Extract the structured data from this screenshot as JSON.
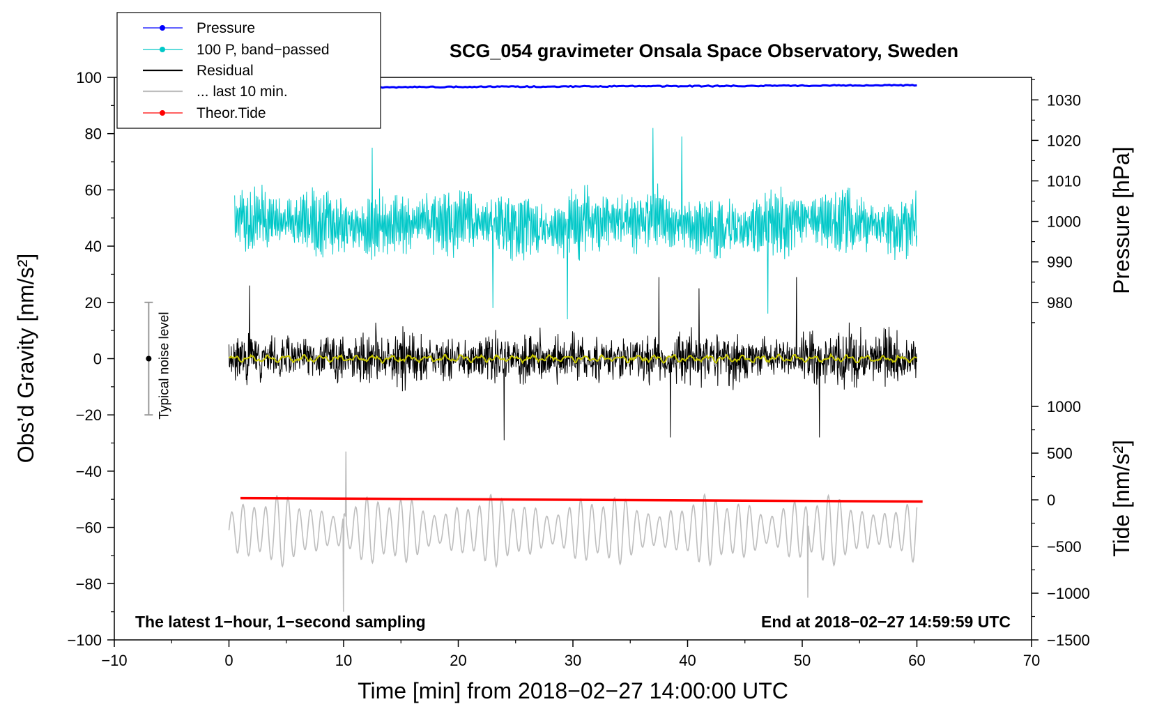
{
  "chart_data": {
    "type": "line",
    "title": "SCG_054 gravimeter Onsala Space Observatory, Sweden",
    "xlabel": "Time [min] from 2018−02−27 14:00:00 UTC",
    "ylabel_left": "Obs’d Gravity [nm/s²]",
    "ylabel_right_top": "Pressure [hPa]",
    "ylabel_right_bottom": "Tide [nm/s²]",
    "xlim": [
      -10,
      70
    ],
    "ylim": [
      -100,
      100
    ],
    "xticks": [
      -10,
      0,
      10,
      20,
      30,
      40,
      50,
      60,
      70
    ],
    "xtick_labels": [
      "−10",
      "0",
      "10",
      "20",
      "30",
      "40",
      "50",
      "60",
      "70"
    ],
    "yticks": [
      -100,
      -80,
      -60,
      -40,
      -20,
      0,
      20,
      40,
      60,
      80,
      100
    ],
    "ytick_labels": [
      "−100",
      "−80",
      "−60",
      "−40",
      "−20",
      "0",
      "20",
      "40",
      "60",
      "80",
      "100"
    ],
    "pressure_axis": {
      "ticks": [
        980,
        990,
        1000,
        1010,
        1020,
        1030
      ],
      "labels": [
        "980",
        "990",
        "1000",
        "1010",
        "1020",
        "1030"
      ],
      "left_value_at": {
        "p980": 20,
        "p1030": 92
      }
    },
    "tide_axis": {
      "ticks": [
        -1500,
        -1000,
        -500,
        0,
        500,
        1000
      ],
      "labels": [
        "−1500",
        "−1000",
        "−500",
        "0",
        "500",
        "1000"
      ],
      "left_value_at": {
        "t_minus1500": -100,
        "t1000": -17
      }
    },
    "legend": {
      "placement": "top-left",
      "entries": [
        {
          "label": "Pressure",
          "color": "#0000ff",
          "marker": true
        },
        {
          "label": "100 P, band−passed",
          "color": "#00c8c8",
          "marker": true
        },
        {
          "label": "Residual",
          "color": "#000000",
          "marker": false
        },
        {
          "label": "... last 10 min.",
          "color": "#bebebe",
          "marker": false
        },
        {
          "label": "Theor.Tide",
          "color": "#ff0000",
          "marker": true
        }
      ]
    },
    "noise_bar": {
      "x": -7,
      "center": 0,
      "low": -20,
      "high": 20,
      "label": "Typical noise level"
    },
    "annotations": {
      "bottom_left": "The latest 1−hour, 1−second sampling",
      "bottom_right": "End at 2018−02−27 14:59:59 UTC"
    },
    "series": [
      {
        "name": "Pressure",
        "color": "#0000ff",
        "x_range": [
          0,
          60
        ],
        "start_left": 96.3,
        "end_left": 97.2,
        "description": "nearly flat, about 1031 hPa"
      },
      {
        "name": "100 P, band−passed",
        "color": "#00c8c8",
        "x_range": [
          0.5,
          60
        ],
        "center_left": 48,
        "amplitude_left": 12,
        "spikes": [
          [
            12.5,
            75
          ],
          [
            37,
            82
          ],
          [
            39.5,
            79
          ],
          [
            23,
            18
          ],
          [
            29.5,
            14
          ],
          [
            47,
            16
          ]
        ]
      },
      {
        "name": "Residual",
        "color": "#000000",
        "x_range": [
          0,
          60
        ],
        "center_left": 0,
        "amplitude_left": 10,
        "spikes": [
          [
            1.8,
            26
          ],
          [
            24,
            -29
          ],
          [
            37.5,
            29
          ],
          [
            38.5,
            -28
          ],
          [
            51.5,
            -28
          ],
          [
            41,
            25
          ],
          [
            49.5,
            29
          ]
        ]
      },
      {
        "name": "Residual smoothed",
        "color": "#c8c800",
        "x_range": [
          0,
          60
        ],
        "center_left": 0,
        "amplitude_left": 1.5
      },
      {
        "name": "... last 10 min.",
        "color": "#bebebe",
        "x_range": [
          0,
          60
        ],
        "center_left": -61,
        "amplitude_left": 13,
        "spikes": [
          [
            10.2,
            -33
          ],
          [
            10.0,
            -90
          ],
          [
            50.5,
            -85
          ]
        ]
      },
      {
        "name": "Theor.Tide",
        "color": "#ff0000",
        "x": [
          1,
          60.5
        ],
        "tide_values": [
          10,
          -20
        ],
        "left_values": [
          -49.6,
          -50.8
        ]
      }
    ]
  }
}
